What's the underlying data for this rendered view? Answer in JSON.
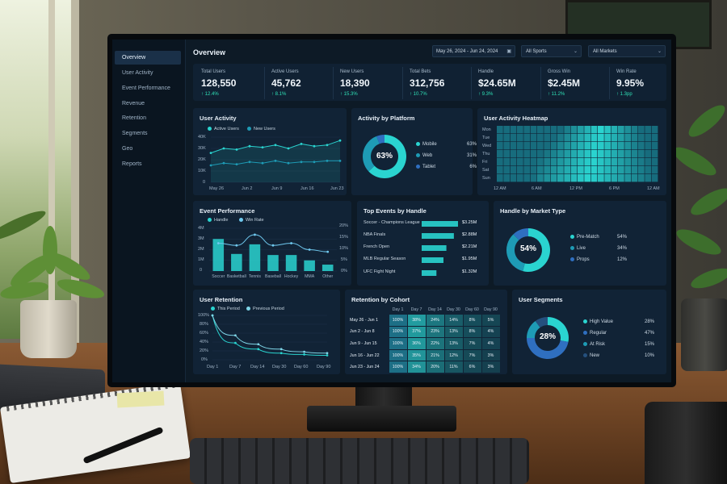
{
  "nav": [
    "Overview",
    "User Activity",
    "Event Performance",
    "Revenue",
    "Retention",
    "Segments",
    "Geo",
    "Reports"
  ],
  "header": {
    "title": "Overview",
    "date_range": "May 26, 2024 - Jun 24, 2024",
    "sports_select": "All Sports",
    "markets_select": "All Markets"
  },
  "kpis": [
    {
      "label": "Total Users",
      "value": "128,550",
      "change": "↑ 12.4%"
    },
    {
      "label": "Active Users",
      "value": "45,762",
      "change": "↑ 8.1%"
    },
    {
      "label": "New Users",
      "value": "18,390",
      "change": "↑ 15.3%"
    },
    {
      "label": "Total Bets",
      "value": "312,756",
      "change": "↑ 10.7%"
    },
    {
      "label": "Handle",
      "value": "$24.65M",
      "change": "↑ 9.3%"
    },
    {
      "label": "Gross Win",
      "value": "$2.45M",
      "change": "↑ 11.2%"
    },
    {
      "label": "Win Rate",
      "value": "9.95%",
      "change": "↑ 1.3pp"
    }
  ],
  "user_activity": {
    "title": "User Activity",
    "legend": [
      "Active Users",
      "New Users"
    ],
    "yticks": [
      "40K",
      "30K",
      "20K",
      "10K",
      "0"
    ],
    "xticks": [
      "May 26",
      "Jun 2",
      "Jun 9",
      "Jun 16",
      "Jun 23"
    ]
  },
  "platform": {
    "title": "Activity by Platform",
    "center": "63%",
    "items": [
      {
        "label": "Mobile",
        "value": "63%"
      },
      {
        "label": "Web",
        "value": "31%"
      },
      {
        "label": "Tablet",
        "value": "6%"
      }
    ]
  },
  "heatmap": {
    "title": "User Activity Heatmap",
    "days": [
      "Mon",
      "Tue",
      "Wed",
      "Thu",
      "Fri",
      "Sat",
      "Sun"
    ],
    "hours": [
      "12 AM",
      "6 AM",
      "12 PM",
      "6 PM",
      "12 AM"
    ]
  },
  "event_perf": {
    "title": "Event Performance",
    "legend": [
      "Handle",
      "Win Rate"
    ],
    "yticks_left": [
      "4M",
      "3M",
      "2M",
      "1M",
      "0"
    ],
    "yticks_right": [
      "20%",
      "15%",
      "10%",
      "5%",
      "0%"
    ],
    "categories": [
      "Soccer",
      "Basketball",
      "Tennis",
      "Baseball",
      "Hockey",
      "MMA",
      "Other"
    ]
  },
  "top_events": {
    "title": "Top Events by Handle",
    "items": [
      {
        "name": "Soccer - Champions League",
        "value": "$3.25M"
      },
      {
        "name": "NBA Finals",
        "value": "$2.88M"
      },
      {
        "name": "French Open",
        "value": "$2.21M"
      },
      {
        "name": "MLB Regular Season",
        "value": "$1.95M"
      },
      {
        "name": "UFC Fight Night",
        "value": "$1.32M"
      }
    ]
  },
  "market_type": {
    "title": "Handle by Market Type",
    "center": "54%",
    "items": [
      {
        "label": "Pre-Match",
        "value": "54%"
      },
      {
        "label": "Live",
        "value": "34%"
      },
      {
        "label": "Props",
        "value": "12%"
      }
    ]
  },
  "retention": {
    "title": "User Retention",
    "legend": [
      "This Period",
      "Previous Period"
    ],
    "yticks": [
      "100%",
      "80%",
      "60%",
      "40%",
      "20%",
      "0%"
    ],
    "xticks": [
      "Day 1",
      "Day 7",
      "Day 14",
      "Day 30",
      "Day 60",
      "Day 90"
    ]
  },
  "cohort": {
    "title": "Retention by Cohort",
    "headers": [
      "",
      "Day 1",
      "Day 7",
      "Day 14",
      "Day 30",
      "Day 60",
      "Day 90"
    ],
    "rows": [
      [
        "May 26 - Jun 1",
        "100%",
        "38%",
        "24%",
        "14%",
        "8%",
        "5%"
      ],
      [
        "Jun 2 - Jun 8",
        "100%",
        "37%",
        "23%",
        "13%",
        "8%",
        "4%"
      ],
      [
        "Jun 9 - Jun 15",
        "100%",
        "36%",
        "22%",
        "13%",
        "7%",
        "4%"
      ],
      [
        "Jun 16 - Jun 22",
        "100%",
        "35%",
        "21%",
        "12%",
        "7%",
        "3%"
      ],
      [
        "Jun 23 - Jun 24",
        "100%",
        "34%",
        "20%",
        "11%",
        "6%",
        "3%"
      ]
    ]
  },
  "segments": {
    "title": "User Segments",
    "center": "28%",
    "items": [
      {
        "label": "High Value",
        "value": "28%"
      },
      {
        "label": "Regular",
        "value": "47%"
      },
      {
        "label": "At Risk",
        "value": "15%"
      },
      {
        "label": "New",
        "value": "10%"
      }
    ]
  },
  "colors": {
    "accent": "#2ad4d0",
    "accent2": "#1e9bb5",
    "blue": "#2f6fc0",
    "panel": "#112336",
    "background": "#0d1a26"
  },
  "chart_data": [
    {
      "type": "line",
      "title": "User Activity",
      "x": [
        "May 26",
        "May 29",
        "Jun 1",
        "Jun 4",
        "Jun 7",
        "Jun 10",
        "Jun 13",
        "Jun 16",
        "Jun 19",
        "Jun 22",
        "Jun 24"
      ],
      "series": [
        {
          "name": "Active Users",
          "values": [
            26,
            30,
            29,
            32,
            31,
            33,
            30,
            34,
            32,
            33,
            37
          ]
        },
        {
          "name": "New Users",
          "values": [
            15,
            17,
            16,
            18,
            17,
            19,
            17,
            18,
            18,
            19,
            19
          ]
        }
      ],
      "ylim": [
        0,
        40
      ]
    },
    {
      "type": "pie",
      "title": "Activity by Platform",
      "categories": [
        "Mobile",
        "Web",
        "Tablet"
      ],
      "values": [
        63,
        31,
        6
      ]
    },
    {
      "type": "heatmap",
      "title": "User Activity Heatmap",
      "rows": [
        "Mon",
        "Tue",
        "Wed",
        "Thu",
        "Fri",
        "Sat",
        "Sun"
      ],
      "columns": 24
    },
    {
      "type": "bar",
      "title": "Event Performance",
      "categories": [
        "Soccer",
        "Basketball",
        "Tennis",
        "Baseball",
        "Hockey",
        "MMA",
        "Other"
      ],
      "series": [
        {
          "name": "Handle",
          "values": [
            3.0,
            1.6,
            2.5,
            1.5,
            1.5,
            1.0,
            0.6
          ]
        },
        {
          "name": "Win Rate",
          "values": [
            13,
            12,
            17,
            12,
            13,
            10,
            9
          ]
        }
      ],
      "ylim": [
        0,
        4
      ],
      "ylim_right": [
        0,
        20
      ]
    },
    {
      "type": "bar",
      "title": "Top Events by Handle",
      "categories": [
        "Soccer - Champions League",
        "NBA Finals",
        "French Open",
        "MLB Regular Season",
        "UFC Fight Night"
      ],
      "values": [
        3.25,
        2.88,
        2.21,
        1.95,
        1.32
      ]
    },
    {
      "type": "pie",
      "title": "Handle by Market Type",
      "categories": [
        "Pre-Match",
        "Live",
        "Props"
      ],
      "values": [
        54,
        34,
        12
      ]
    },
    {
      "type": "line",
      "title": "User Retention",
      "x": [
        "Day 1",
        "Day 7",
        "Day 14",
        "Day 30",
        "Day 60",
        "Day 90"
      ],
      "series": [
        {
          "name": "This Period",
          "values": [
            100,
            38,
            24,
            15,
            12,
            10
          ]
        },
        {
          "name": "Previous Period",
          "values": [
            100,
            55,
            35,
            24,
            18,
            15
          ]
        }
      ],
      "ylim": [
        0,
        100
      ]
    },
    {
      "type": "pie",
      "title": "User Segments",
      "categories": [
        "High Value",
        "Regular",
        "At Risk",
        "New"
      ],
      "values": [
        28,
        47,
        15,
        10
      ]
    }
  ]
}
